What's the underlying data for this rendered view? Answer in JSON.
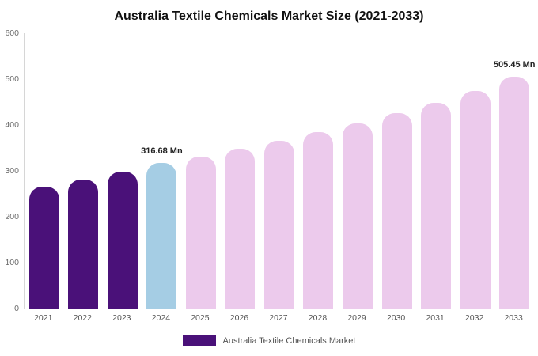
{
  "title": "Australia Textile Chemicals Market Size (2021-2033)",
  "legend": {
    "label": "Australia Textile Chemicals Market",
    "swatch_color": "#4a1179"
  },
  "colors": {
    "historical": "#4a1179",
    "highlight": "#a5cde4",
    "forecast": "#eccaec"
  },
  "chart_data": {
    "type": "bar",
    "title": "Australia Textile Chemicals Market Size (2021-2033)",
    "xlabel": "",
    "ylabel": "",
    "ylim": [
      0,
      600
    ],
    "yticks": [
      0,
      100,
      200,
      300,
      400,
      500,
      600
    ],
    "grid": false,
    "legend_position": "bottom",
    "categories": [
      "2021",
      "2022",
      "2023",
      "2024",
      "2025",
      "2026",
      "2027",
      "2028",
      "2029",
      "2030",
      "2031",
      "2032",
      "2033"
    ],
    "values": [
      265,
      281,
      298,
      316.68,
      331,
      348,
      365,
      384,
      404,
      426,
      449,
      474,
      505.45
    ],
    "bar_roles": [
      "historical",
      "historical",
      "historical",
      "highlight",
      "forecast",
      "forecast",
      "forecast",
      "forecast",
      "forecast",
      "forecast",
      "forecast",
      "forecast",
      "forecast"
    ],
    "annotations": [
      {
        "index": 3,
        "text": "316.68 Mn"
      },
      {
        "index": 12,
        "text": "505.45 Mn"
      }
    ]
  }
}
